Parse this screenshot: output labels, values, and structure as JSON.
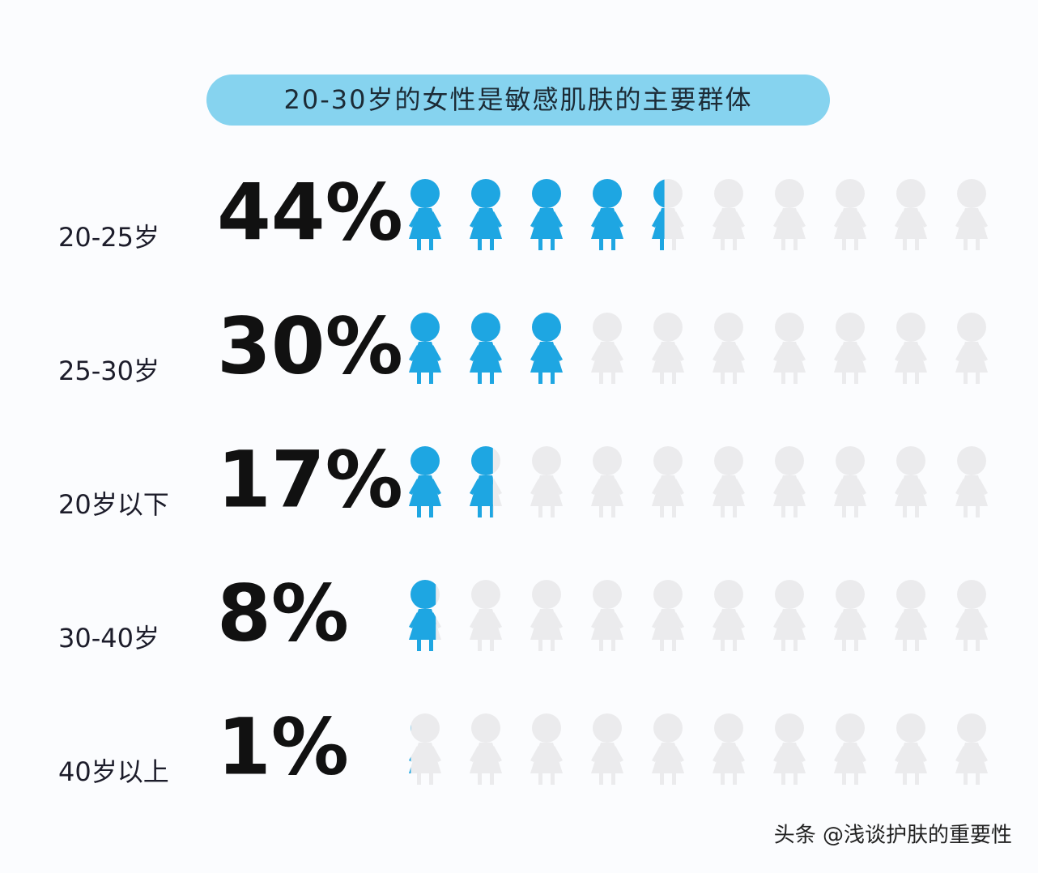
{
  "chart_data": {
    "type": "pictogram",
    "title": "20-30岁的女性是敏感肌肤的主要群体",
    "categories": [
      "20-25岁",
      "25-30岁",
      "20岁以下",
      "30-40岁",
      "40岁以上"
    ],
    "values": [
      44,
      30,
      17,
      8,
      1
    ],
    "value_labels": [
      "44%",
      "30%",
      "17%",
      "8%",
      "1%"
    ],
    "xlim": [
      0,
      100
    ],
    "color": "#1ea6e2",
    "empty_color": "#ebebed",
    "watermark": "头条 @浅谈护肤的重要性"
  }
}
